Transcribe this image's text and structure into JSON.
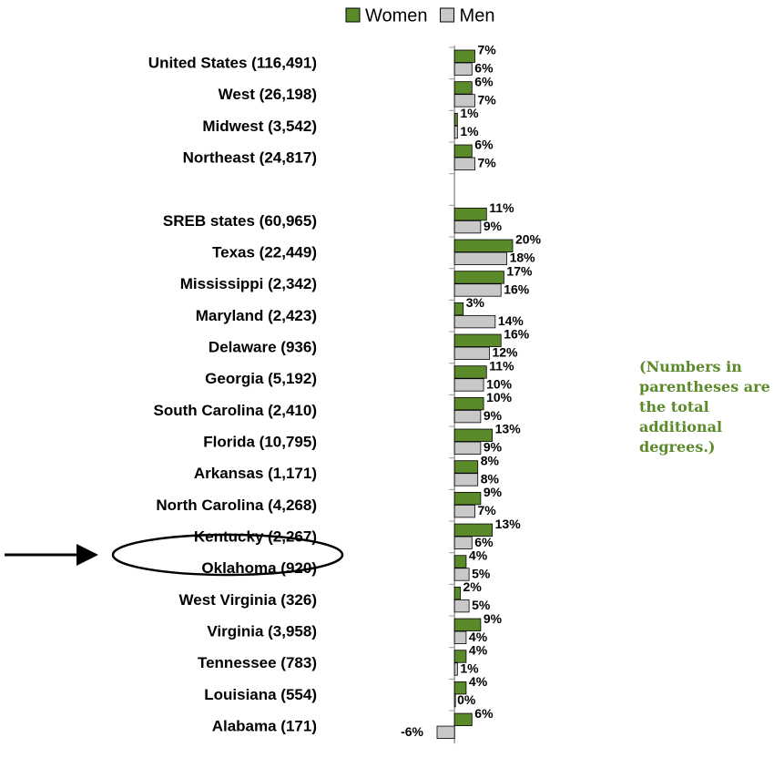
{
  "chart_data": {
    "type": "bar",
    "orientation": "horizontal",
    "categories": [
      "United States (116,491)",
      "West (26,198)",
      "Midwest (3,542)",
      "Northeast (24,817)",
      null,
      "SREB states (60,965)",
      "Texas (22,449)",
      "Mississippi (2,342)",
      "Maryland (2,423)",
      "Delaware (936)",
      "Georgia (5,192)",
      "South Carolina (2,410)",
      "Florida (10,795)",
      "Arkansas (1,171)",
      "North Carolina (4,268)",
      "Kentucky (2,267)",
      "Oklahoma (920)",
      "West Virginia (326)",
      "Virginia (3,958)",
      "Tennessee (783)",
      "Louisiana (554)",
      "Alabama (171)"
    ],
    "series": [
      {
        "name": "Women",
        "color": "#5b8a2a",
        "values": [
          7,
          6,
          1,
          6,
          null,
          11,
          20,
          17,
          3,
          16,
          11,
          10,
          13,
          8,
          9,
          13,
          4,
          2,
          9,
          4,
          4,
          6
        ],
        "value_labels": [
          "7%",
          "6%",
          "1%",
          "6%",
          null,
          "11%",
          "20%",
          "17%",
          "3%",
          "16%",
          "11%",
          "10%",
          "13%",
          "8%",
          "9%",
          "13%",
          "4%",
          "2%",
          "9%",
          "4%",
          "4%",
          "6%"
        ]
      },
      {
        "name": "Men",
        "color": "#c8c8c8",
        "values": [
          6,
          7,
          1,
          7,
          null,
          9,
          18,
          16,
          14,
          12,
          10,
          9,
          9,
          8,
          7,
          6,
          5,
          5,
          4,
          1,
          0,
          -6
        ],
        "value_labels": [
          "6%",
          "7%",
          "1%",
          "7%",
          null,
          "9%",
          "18%",
          "16%",
          "14%",
          "12%",
          "10%",
          "9%",
          "9%",
          "8%",
          "7%",
          "6%",
          "5%",
          "5%",
          "4%",
          "1%",
          "0%",
          "-6%"
        ]
      }
    ],
    "xlim": [
      -6,
      20
    ],
    "legend": "top",
    "annotation": "(Numbers in parentheses are the total additional degrees.)"
  }
}
